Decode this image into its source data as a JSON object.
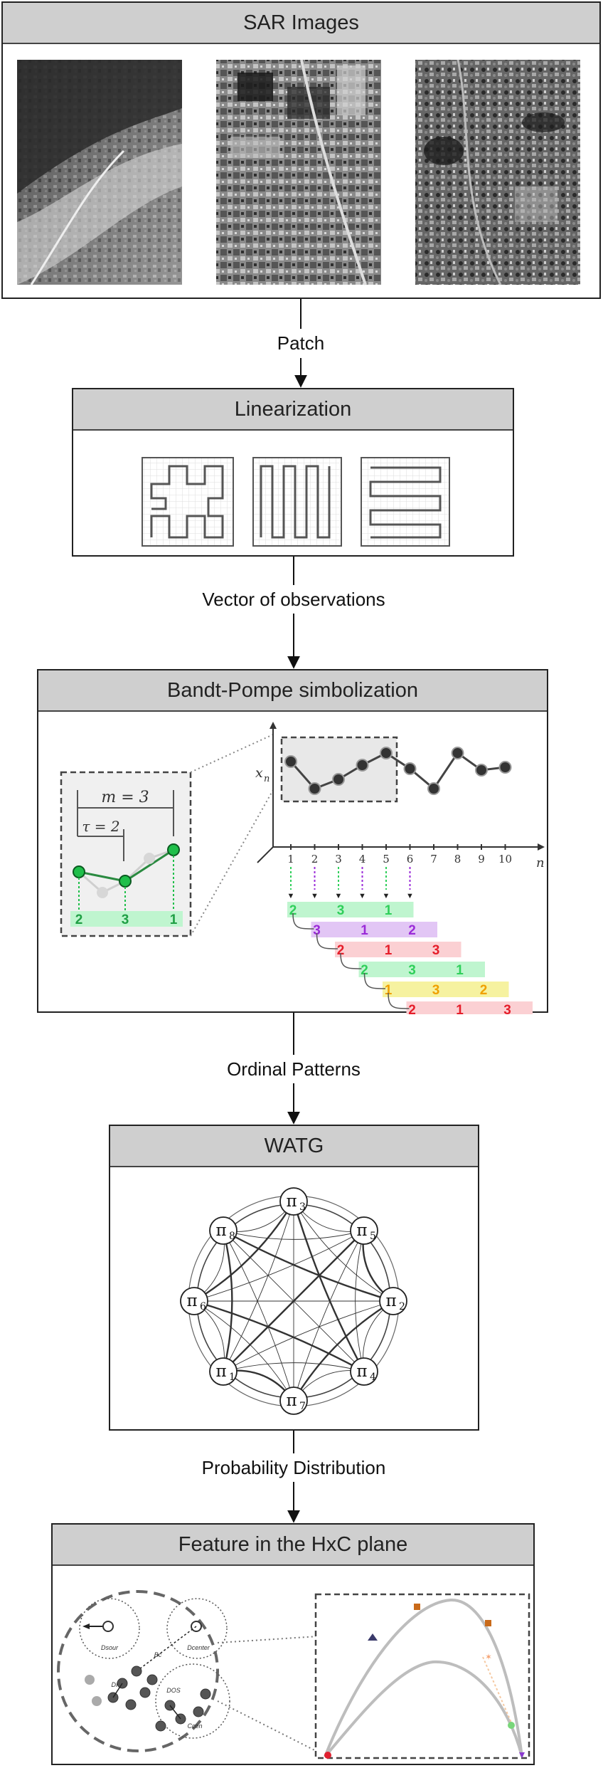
{
  "stages": {
    "sar": {
      "title": "SAR Images"
    },
    "linearization": {
      "title": "Linearization"
    },
    "bandt_pompe": {
      "title": "Bandt-Pompe simbolization"
    },
    "watg": {
      "title": "WATG"
    },
    "hxc": {
      "title": "Feature in the HxC plane"
    }
  },
  "edges": {
    "patch": "Patch",
    "vector": "Vector of observations",
    "ordinal": "Ordinal Patterns",
    "probability": "Probability Distribution"
  },
  "bandt_pompe_detail": {
    "m_label": "m = 3",
    "tau_label": "τ = 2",
    "x_axis_label": "n",
    "y_axis_label": "x",
    "y_axis_sub": "n",
    "zoom_pattern": [
      "2",
      "3",
      "1"
    ],
    "ticks": [
      "1",
      "2",
      "3",
      "4",
      "5",
      "6",
      "7",
      "8",
      "9",
      "10"
    ],
    "patterns": [
      {
        "digits": [
          "2",
          "3",
          "1"
        ],
        "color": "#2fcf5a",
        "bg": "#bff5cf"
      },
      {
        "digits": [
          "3",
          "1",
          "2"
        ],
        "color": "#9a2ad8",
        "bg": "#e2c6f5"
      },
      {
        "digits": [
          "2",
          "1",
          "3"
        ],
        "color": "#e51e2a",
        "bg": "#fbd0d3"
      },
      {
        "digits": [
          "2",
          "3",
          "1"
        ],
        "color": "#2fcf5a",
        "bg": "#bff5cf"
      },
      {
        "digits": [
          "1",
          "3",
          "2"
        ],
        "color": "#f0a000",
        "bg": "#f6f2a0"
      },
      {
        "digits": [
          "2",
          "1",
          "3"
        ],
        "color": "#e51e2a",
        "bg": "#fbd0d3"
      }
    ]
  },
  "watg_nodes": [
    {
      "base": "π",
      "sub": "3"
    },
    {
      "base": "π",
      "sub": "5"
    },
    {
      "base": "π",
      "sub": "2"
    },
    {
      "base": "π",
      "sub": "4"
    },
    {
      "base": "π",
      "sub": "7"
    },
    {
      "base": "π",
      "sub": "1"
    },
    {
      "base": "π",
      "sub": "6"
    },
    {
      "base": "π",
      "sub": "8"
    }
  ],
  "hxc_detail": {
    "cluster_labels": [
      "Dsour",
      "Dcenter",
      "Bc",
      "DIS",
      "DOS",
      "Ccen"
    ]
  }
}
